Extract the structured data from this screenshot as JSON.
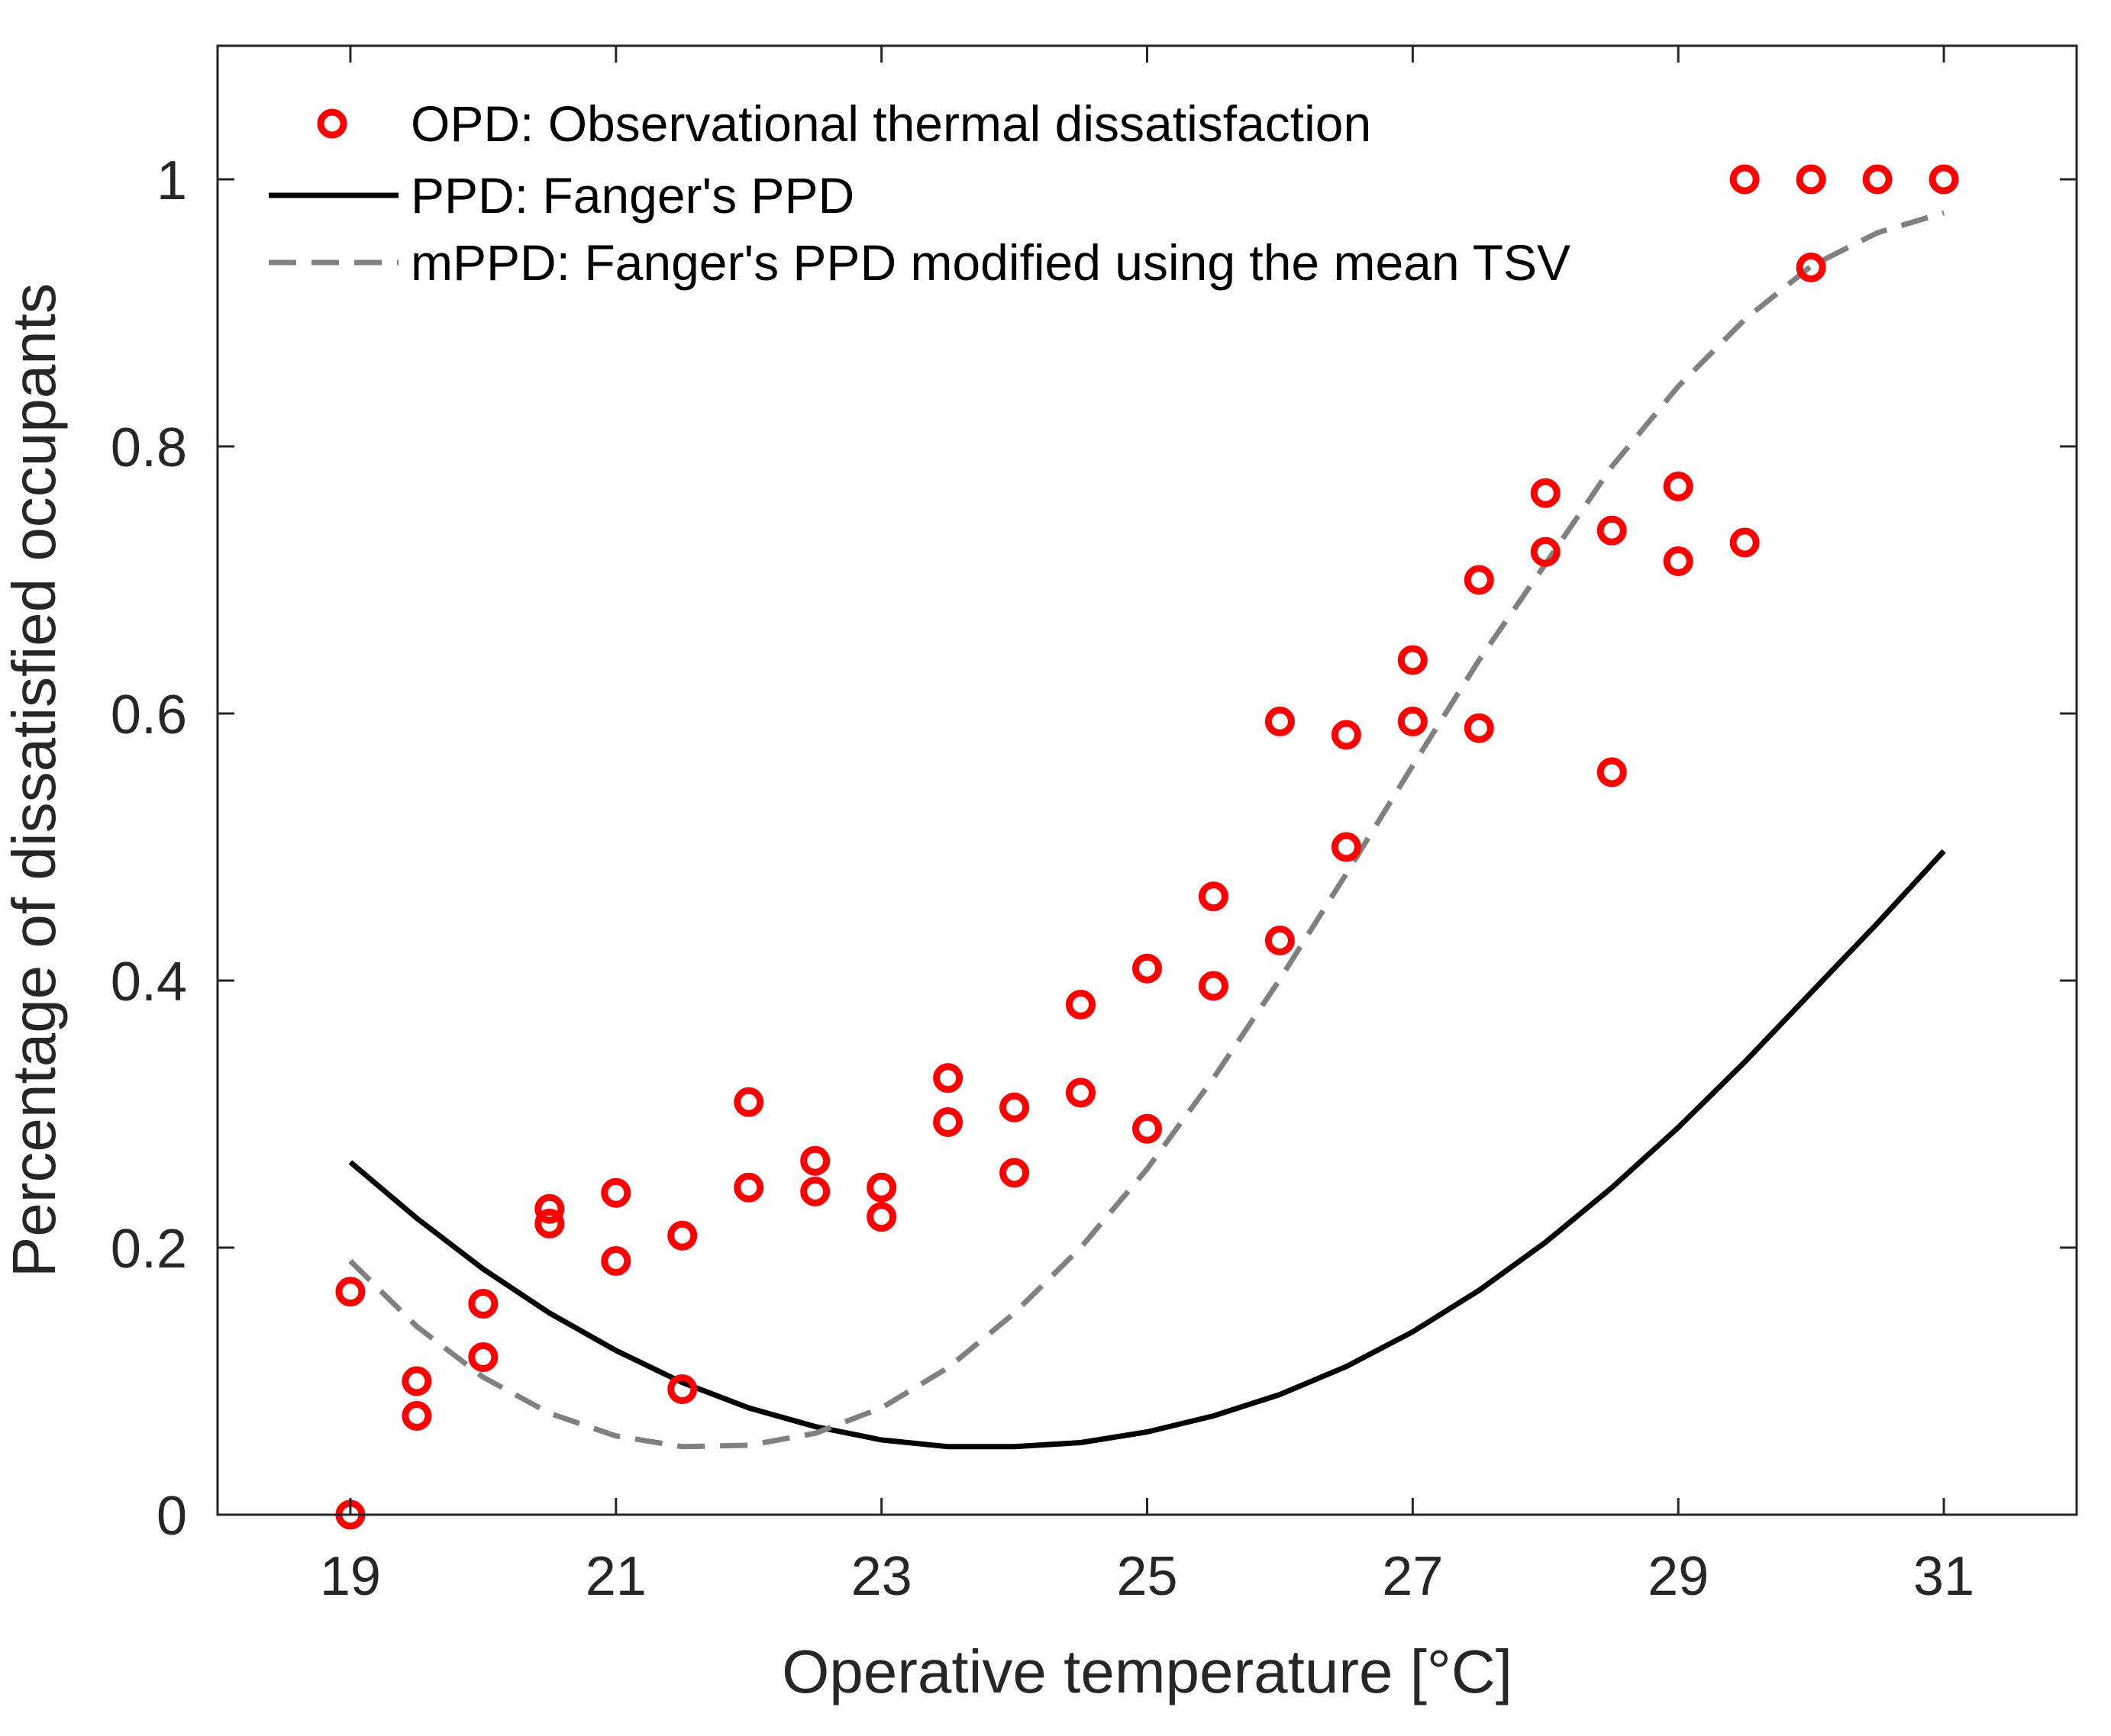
{
  "chart_data": {
    "type": "scatter",
    "xlabel": "Operative temperature [°C]",
    "ylabel": "Percentage of dissatisfied occupants",
    "xlim": [
      18,
      32
    ],
    "ylim": [
      0,
      1.1
    ],
    "xticks": [
      "19",
      "21",
      "23",
      "25",
      "27",
      "29",
      "31"
    ],
    "yticks": [
      "0",
      "0.2",
      "0.4",
      "0.6",
      "0.8",
      "1"
    ],
    "grid": false,
    "legend_position": "top-left",
    "series": [
      {
        "name": "OPD: Observational thermal dissatisfaction",
        "kind": "scatter",
        "color": "#ff0000",
        "marker": "circle-open",
        "points": [
          [
            19,
            0.0
          ],
          [
            19,
            0.167
          ],
          [
            19.5,
            0.074
          ],
          [
            19.5,
            0.1
          ],
          [
            20,
            0.118
          ],
          [
            20,
            0.158
          ],
          [
            20.5,
            0.218
          ],
          [
            20.5,
            0.229
          ],
          [
            21,
            0.19
          ],
          [
            21,
            0.241
          ],
          [
            21.5,
            0.094
          ],
          [
            21.5,
            0.209
          ],
          [
            22,
            0.245
          ],
          [
            22,
            0.309
          ],
          [
            22.5,
            0.242
          ],
          [
            22.5,
            0.265
          ],
          [
            23,
            0.223
          ],
          [
            23,
            0.245
          ],
          [
            23.5,
            0.294
          ],
          [
            23.5,
            0.327
          ],
          [
            24,
            0.256
          ],
          [
            24,
            0.305
          ],
          [
            24.5,
            0.316
          ],
          [
            24.5,
            0.382
          ],
          [
            25,
            0.289
          ],
          [
            25,
            0.409
          ],
          [
            25.5,
            0.396
          ],
          [
            25.5,
            0.463
          ],
          [
            26,
            0.43
          ],
          [
            26,
            0.594
          ],
          [
            26.5,
            0.5
          ],
          [
            26.5,
            0.584
          ],
          [
            27,
            0.594
          ],
          [
            27,
            0.64
          ],
          [
            27.5,
            0.589
          ],
          [
            27.5,
            0.7
          ],
          [
            28,
            0.721
          ],
          [
            28,
            0.765
          ],
          [
            28.5,
            0.556
          ],
          [
            28.5,
            0.737
          ],
          [
            29,
            0.714
          ],
          [
            29,
            0.77
          ],
          [
            29.5,
            0.728
          ],
          [
            29.5,
            1.0
          ],
          [
            30,
            0.934
          ],
          [
            30,
            1.0
          ],
          [
            30.5,
            1.0
          ],
          [
            31,
            1.0
          ]
        ]
      },
      {
        "name": "PPD: Fanger's PPD",
        "kind": "line",
        "color": "#000000",
        "dash": "solid",
        "x": [
          19,
          19.5,
          20,
          20.5,
          21,
          21.5,
          22,
          22.5,
          23,
          23.5,
          24,
          24.5,
          25,
          25.5,
          26,
          26.5,
          27,
          27.5,
          28,
          28.5,
          29,
          29.5,
          30,
          30.5,
          31
        ],
        "y": [
          0.264,
          0.222,
          0.184,
          0.151,
          0.123,
          0.099,
          0.08,
          0.066,
          0.056,
          0.051,
          0.051,
          0.054,
          0.062,
          0.074,
          0.09,
          0.111,
          0.137,
          0.168,
          0.204,
          0.245,
          0.29,
          0.339,
          0.391,
          0.443,
          0.497
        ]
      },
      {
        "name": "mPPD: Fanger's PPD modified using the mean TSV",
        "kind": "line",
        "color": "#808080",
        "dash": "dashed",
        "x": [
          19,
          19.5,
          20,
          20.5,
          21,
          21.5,
          22,
          22.5,
          23,
          23.5,
          24,
          24.5,
          25,
          25.5,
          26,
          26.5,
          27,
          27.5,
          28,
          28.5,
          29,
          29.5,
          30,
          30.5,
          31
        ],
        "y": [
          0.19,
          0.141,
          0.103,
          0.076,
          0.059,
          0.051,
          0.052,
          0.061,
          0.08,
          0.11,
          0.151,
          0.2,
          0.259,
          0.327,
          0.401,
          0.48,
          0.561,
          0.64,
          0.712,
          0.785,
          0.845,
          0.895,
          0.935,
          0.96,
          0.975
        ]
      }
    ]
  }
}
